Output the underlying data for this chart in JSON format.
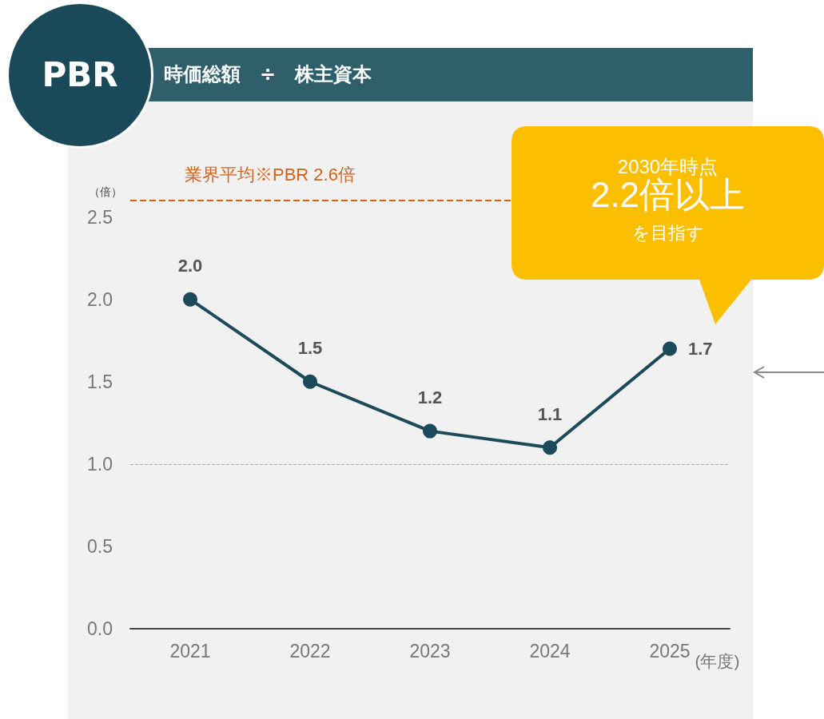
{
  "chart_data": {
    "type": "line",
    "title": "PBR",
    "subtitle": "時価総額　÷　株主資本",
    "categories": [
      "2021",
      "2022",
      "2023",
      "2024",
      "2025"
    ],
    "series": [
      {
        "color": "#1b4a5a",
        "values": [
          2.0,
          1.5,
          1.2,
          1.1,
          1.7
        ],
        "value_labels": [
          "2.0",
          "1.5",
          "1.2",
          "1.1",
          "1.7"
        ]
      }
    ],
    "ylabel": "（倍）",
    "xlabel": "(年度)",
    "ylim": [
      0,
      2.6
    ],
    "yticks": [
      {
        "value": 0,
        "label": "0.0"
      },
      {
        "value": 0.5,
        "label": "0.5"
      },
      {
        "value": 1,
        "label": "1.0"
      },
      {
        "value": 1.5,
        "label": "1.5"
      },
      {
        "value": 2,
        "label": "2.0"
      },
      {
        "value": 2.5,
        "label": "2.5"
      }
    ],
    "ref_lines": [
      {
        "axis": "y",
        "value": 2.6,
        "label": "業界平均※PBR 2.6倍",
        "color": "#d4621a",
        "line_style": "dashed"
      },
      {
        "axis": "y",
        "value": 1.0,
        "label": null,
        "color": "#aaaaaa",
        "line_style": "dashed"
      }
    ],
    "annotations": [
      "2030年時点",
      "2.2倍以上",
      "を目指す"
    ],
    "marker": "circle",
    "line_style": "solid",
    "grid": false
  }
}
